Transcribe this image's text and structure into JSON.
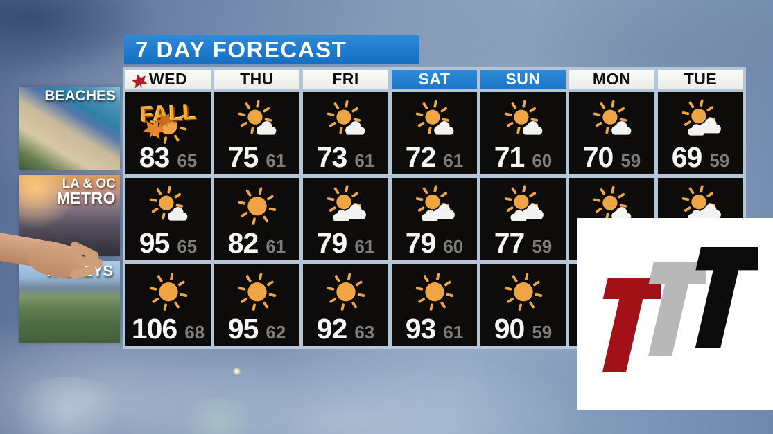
{
  "title": "7 DAY FORECAST",
  "regions": [
    {
      "name": "beaches",
      "label": "BEACHES"
    },
    {
      "name": "la-oc-metro",
      "label": "LA & OC",
      "label2": "METRO"
    },
    {
      "name": "valleys",
      "label": "VALLEYS"
    }
  ],
  "special_label": "FALL",
  "logo": {
    "letters": [
      "T",
      "T",
      "T"
    ],
    "colors": [
      "#a31118",
      "#b8b8b8",
      "#0c0c0c"
    ]
  },
  "colors": {
    "accent_blue": "#1e7bcd",
    "cell_background": "#0d0c0a",
    "high_temp": "#f6f6f6",
    "low_temp": "#7e7e7e",
    "sun": "#f0a544",
    "grid_lines": "#b5c5d8"
  },
  "chart_data": {
    "type": "table",
    "title": "7 DAY FORECAST",
    "columns": [
      "WED",
      "THU",
      "FRI",
      "SAT",
      "SUN",
      "MON",
      "TUE"
    ],
    "highlighted_columns": [
      3,
      4
    ],
    "rows": [
      {
        "region": "BEACHES",
        "cells": [
          {
            "icon": "fall-sun",
            "hi": 83,
            "lo": 65,
            "special": "FALL"
          },
          {
            "icon": "partly-sunny",
            "hi": 75,
            "lo": 61
          },
          {
            "icon": "partly-sunny",
            "hi": 73,
            "lo": 61
          },
          {
            "icon": "partly-sunny",
            "hi": 72,
            "lo": 61
          },
          {
            "icon": "partly-sunny",
            "hi": 71,
            "lo": 60
          },
          {
            "icon": "partly-sunny",
            "hi": 70,
            "lo": 59
          },
          {
            "icon": "sun-clouds",
            "hi": 69,
            "lo": 59
          }
        ]
      },
      {
        "region": "LA & OC METRO",
        "cells": [
          {
            "icon": "partly-sunny",
            "hi": 95,
            "lo": 65
          },
          {
            "icon": "sunny",
            "hi": 82,
            "lo": 61
          },
          {
            "icon": "sun-clouds",
            "hi": 79,
            "lo": 61
          },
          {
            "icon": "sun-clouds",
            "hi": 79,
            "lo": 60
          },
          {
            "icon": "sun-clouds",
            "hi": 77,
            "lo": 59
          },
          {
            "icon": "partly-sunny",
            "hi": null,
            "lo": null
          },
          {
            "icon": "sun-clouds",
            "hi": null,
            "lo": null
          }
        ]
      },
      {
        "region": "VALLEYS",
        "cells": [
          {
            "icon": "sunny",
            "hi": 106,
            "lo": 68
          },
          {
            "icon": "sunny",
            "hi": 95,
            "lo": 62
          },
          {
            "icon": "sunny",
            "hi": 92,
            "lo": 63
          },
          {
            "icon": "sunny",
            "hi": 93,
            "lo": 61
          },
          {
            "icon": "sunny",
            "hi": 90,
            "lo": 59
          },
          {
            "icon": null,
            "hi": null,
            "lo": null
          },
          {
            "icon": null,
            "hi": null,
            "lo": null
          }
        ]
      }
    ]
  }
}
